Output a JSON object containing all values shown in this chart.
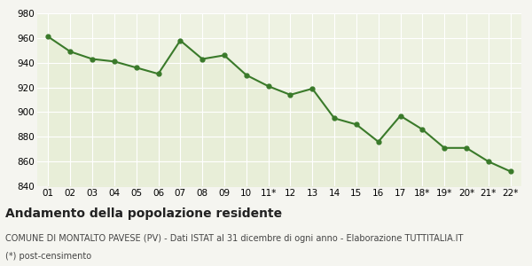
{
  "x_labels": [
    "01",
    "02",
    "03",
    "04",
    "05",
    "06",
    "07",
    "08",
    "09",
    "10",
    "11*",
    "12",
    "13",
    "14",
    "15",
    "16",
    "17",
    "18*",
    "19*",
    "20*",
    "21*",
    "22*"
  ],
  "y_values": [
    961,
    949,
    943,
    941,
    936,
    931,
    958,
    943,
    946,
    930,
    921,
    914,
    919,
    895,
    890,
    876,
    897,
    886,
    871,
    871,
    860,
    852
  ],
  "line_color": "#3a7a2a",
  "fill_color": "#e8eed8",
  "marker": "o",
  "marker_size": 3.5,
  "line_width": 1.5,
  "ylim": [
    840,
    980
  ],
  "yticks": [
    840,
    860,
    880,
    900,
    920,
    940,
    960,
    980
  ],
  "background_color": "#f5f5f0",
  "plot_background": "#eef2e2",
  "grid_color": "#ffffff",
  "title_main": "Andamento della popolazione residente",
  "title_sub1": "COMUNE DI MONTALTO PAVESE (PV) - Dati ISTAT al 31 dicembre di ogni anno - Elaborazione TUTTITALIA.IT",
  "title_sub2": "(*) post-censimento",
  "title_fontsize": 10,
  "sub_fontsize": 7.0,
  "tick_fontsize": 7.5
}
